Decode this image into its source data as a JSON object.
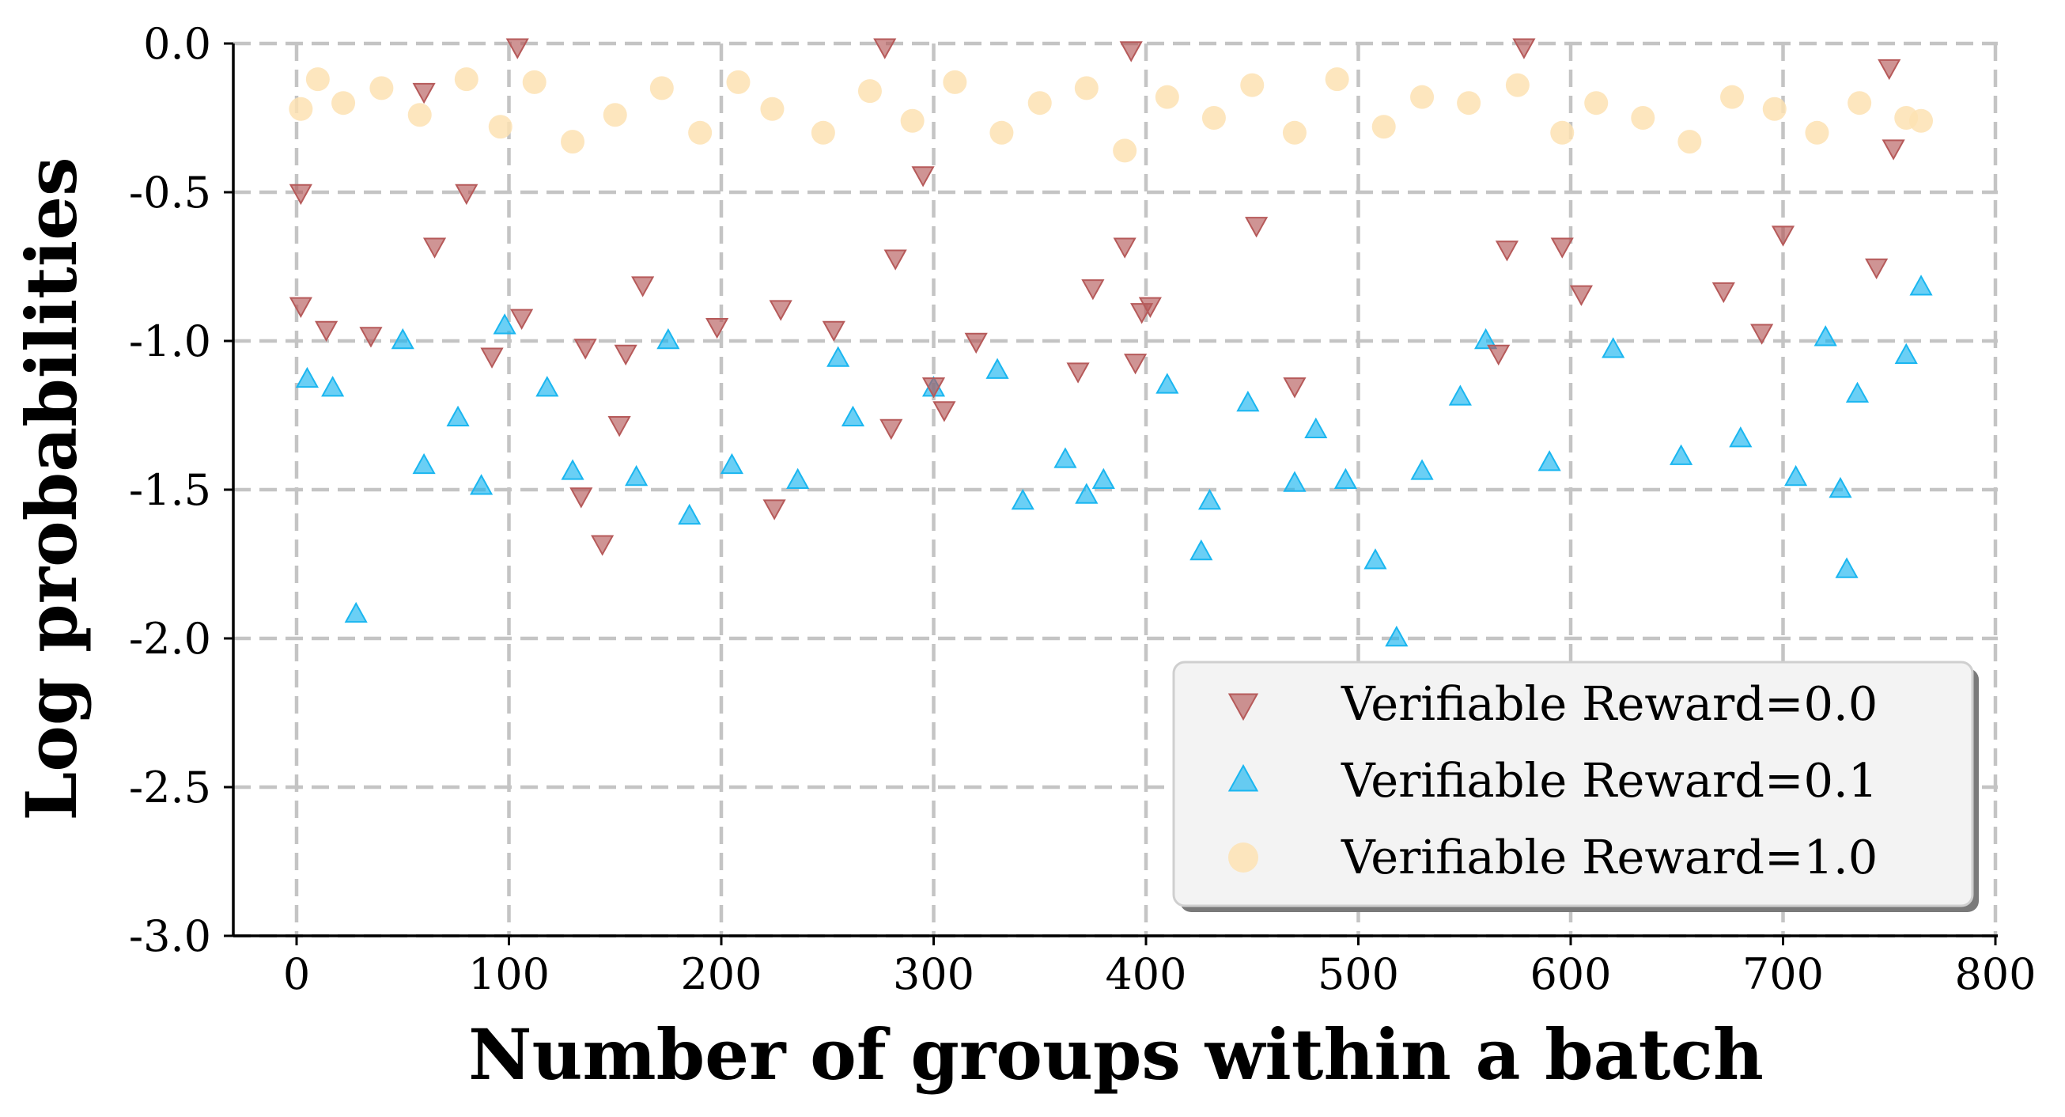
{
  "chart_data": {
    "type": "scatter",
    "title": "",
    "xlabel": "Number of groups within a batch",
    "ylabel": "Log probabilities",
    "xlim": [
      -30,
      800
    ],
    "ylim": [
      -3.0,
      0.0
    ],
    "xticks": [
      0,
      100,
      200,
      300,
      400,
      500,
      600,
      700,
      800
    ],
    "xtick_labels": [
      "0",
      "100",
      "200",
      "300",
      "400",
      "500",
      "600",
      "700",
      "800"
    ],
    "yticks": [
      0.0,
      -0.5,
      -1.0,
      -1.5,
      -2.0,
      -2.5,
      -3.0
    ],
    "ytick_labels": [
      "0.0",
      "-0.5",
      "-1.0",
      "-1.5",
      "-2.0",
      "-2.5",
      "-3.0"
    ],
    "grid": true,
    "legend_position": "lower-right",
    "series": [
      {
        "name": "Verifiable Reward=0.0",
        "label": "Verifiable Reward=0.0",
        "marker": "triangle-down",
        "color": "#b65a5a",
        "points": [
          [
            2,
            -0.5
          ],
          [
            2,
            -0.88
          ],
          [
            14,
            -0.96
          ],
          [
            35,
            -0.98
          ],
          [
            60,
            -0.16
          ],
          [
            65,
            -0.68
          ],
          [
            80,
            -0.5
          ],
          [
            92,
            -1.05
          ],
          [
            104,
            -0.01
          ],
          [
            106,
            -0.92
          ],
          [
            134,
            -1.52
          ],
          [
            136,
            -1.02
          ],
          [
            144,
            -1.68
          ],
          [
            152,
            -1.28
          ],
          [
            155,
            -1.04
          ],
          [
            163,
            -0.81
          ],
          [
            198,
            -0.95
          ],
          [
            225,
            -1.56
          ],
          [
            228,
            -0.89
          ],
          [
            253,
            -0.96
          ],
          [
            277,
            -0.01
          ],
          [
            280,
            -1.29
          ],
          [
            282,
            -0.72
          ],
          [
            295,
            -0.44
          ],
          [
            300,
            -1.15
          ],
          [
            305,
            -1.23
          ],
          [
            320,
            -1.0
          ],
          [
            368,
            -1.1
          ],
          [
            375,
            -0.82
          ],
          [
            390,
            -0.68
          ],
          [
            393,
            -0.02
          ],
          [
            395,
            -1.07
          ],
          [
            398,
            -0.9
          ],
          [
            402,
            -0.88
          ],
          [
            452,
            -0.61
          ],
          [
            470,
            -1.15
          ],
          [
            566,
            -1.04
          ],
          [
            570,
            -0.69
          ],
          [
            578,
            -0.01
          ],
          [
            596,
            -0.68
          ],
          [
            605,
            -0.84
          ],
          [
            672,
            -0.83
          ],
          [
            690,
            -0.97
          ],
          [
            700,
            -0.64
          ],
          [
            744,
            -0.75
          ],
          [
            750,
            -0.08
          ],
          [
            752,
            -0.35
          ]
        ]
      },
      {
        "name": "Verifiable Reward=0.1",
        "label": "Verifiable Reward=0.1",
        "marker": "triangle-up",
        "color": "#1ab6f0",
        "points": [
          [
            28,
            -1.92
          ],
          [
            518,
            -2.0
          ],
          [
            730,
            -1.77
          ],
          [
            426,
            -1.71
          ],
          [
            508,
            -1.74
          ],
          [
            87,
            -1.49
          ],
          [
            60,
            -1.42
          ],
          [
            130,
            -1.44
          ],
          [
            185,
            -1.59
          ],
          [
            372,
            -1.52
          ],
          [
            380,
            -1.47
          ],
          [
            430,
            -1.54
          ],
          [
            494,
            -1.47
          ],
          [
            548,
            -1.19
          ],
          [
            590,
            -1.41
          ],
          [
            652,
            -1.39
          ],
          [
            706,
            -1.46
          ],
          [
            727,
            -1.5
          ],
          [
            5,
            -1.13
          ],
          [
            17,
            -1.16
          ],
          [
            50,
            -1.0
          ],
          [
            76,
            -1.26
          ],
          [
            98,
            -0.95
          ],
          [
            118,
            -1.16
          ],
          [
            160,
            -1.46
          ],
          [
            175,
            -1.0
          ],
          [
            205,
            -1.42
          ],
          [
            236,
            -1.47
          ],
          [
            255,
            -1.06
          ],
          [
            262,
            -1.26
          ],
          [
            300,
            -1.16
          ],
          [
            330,
            -1.1
          ],
          [
            342,
            -1.54
          ],
          [
            362,
            -1.4
          ],
          [
            410,
            -1.15
          ],
          [
            448,
            -1.21
          ],
          [
            470,
            -1.48
          ],
          [
            480,
            -1.3
          ],
          [
            530,
            -1.44
          ],
          [
            560,
            -1.0
          ],
          [
            620,
            -1.03
          ],
          [
            680,
            -1.33
          ],
          [
            720,
            -0.99
          ],
          [
            735,
            -1.18
          ],
          [
            758,
            -1.05
          ],
          [
            765,
            -0.82
          ]
        ]
      },
      {
        "name": "Verifiable Reward=1.0",
        "label": "Verifiable Reward=1.0",
        "marker": "circle",
        "color": "#fde2b3",
        "points": [
          [
            2,
            -0.22
          ],
          [
            10,
            -0.12
          ],
          [
            22,
            -0.2
          ],
          [
            40,
            -0.15
          ],
          [
            58,
            -0.24
          ],
          [
            80,
            -0.12
          ],
          [
            96,
            -0.28
          ],
          [
            112,
            -0.13
          ],
          [
            130,
            -0.33
          ],
          [
            150,
            -0.24
          ],
          [
            172,
            -0.15
          ],
          [
            190,
            -0.3
          ],
          [
            208,
            -0.13
          ],
          [
            224,
            -0.22
          ],
          [
            248,
            -0.3
          ],
          [
            270,
            -0.16
          ],
          [
            290,
            -0.26
          ],
          [
            310,
            -0.13
          ],
          [
            332,
            -0.3
          ],
          [
            350,
            -0.2
          ],
          [
            372,
            -0.15
          ],
          [
            390,
            -0.36
          ],
          [
            410,
            -0.18
          ],
          [
            432,
            -0.25
          ],
          [
            450,
            -0.14
          ],
          [
            470,
            -0.3
          ],
          [
            490,
            -0.12
          ],
          [
            512,
            -0.28
          ],
          [
            530,
            -0.18
          ],
          [
            552,
            -0.2
          ],
          [
            575,
            -0.14
          ],
          [
            596,
            -0.3
          ],
          [
            612,
            -0.2
          ],
          [
            634,
            -0.25
          ],
          [
            656,
            -0.33
          ],
          [
            676,
            -0.18
          ],
          [
            696,
            -0.22
          ],
          [
            716,
            -0.3
          ],
          [
            736,
            -0.2
          ],
          [
            758,
            -0.25
          ],
          [
            765,
            -0.26
          ]
        ]
      }
    ]
  }
}
